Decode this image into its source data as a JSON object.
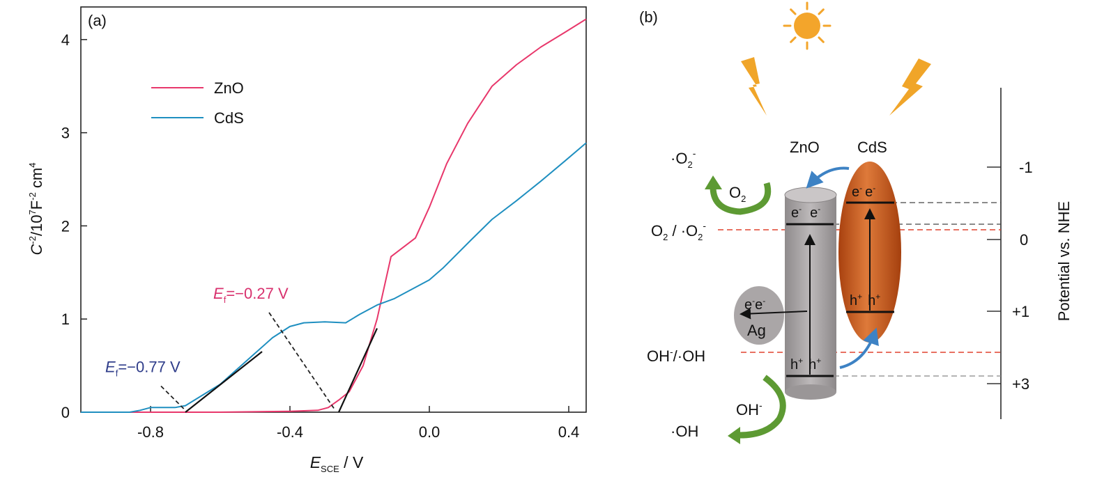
{
  "panel_a": {
    "tag": "(a)"
  },
  "panel_b": {
    "tag": "(b)"
  },
  "chart_data": {
    "type": "line",
    "xlabel": {
      "main": "E",
      "sub": "SCE",
      "rest": " / V"
    },
    "ylabel": {
      "c": "C",
      "s1": "-2",
      "mid": "/10",
      "s2": "7",
      "f": "F",
      "s3": "-2",
      "cm": " cm",
      "s4": "4"
    },
    "xlim": [
      -1.0,
      0.45
    ],
    "ylim": [
      0,
      4.35
    ],
    "xticks": [
      -0.8,
      -0.4,
      0.0,
      0.4
    ],
    "xtick_labels": [
      "-0.8",
      "-0.4",
      "0.0",
      "0.4"
    ],
    "yticks": [
      0,
      1,
      2,
      3,
      4
    ],
    "ytick_labels": [
      "0",
      "1",
      "2",
      "3",
      "4"
    ],
    "legend_position": "upper-left",
    "grid": false,
    "series": [
      {
        "name": "ZnO",
        "color": "#e8376b",
        "x": [
          -1.0,
          -0.6,
          -0.4,
          -0.32,
          -0.29,
          -0.26,
          -0.23,
          -0.19,
          -0.15,
          -0.11,
          -0.04,
          0.0,
          0.05,
          0.11,
          0.18,
          0.25,
          0.32,
          0.39,
          0.45
        ],
        "y": [
          0.0,
          0.0,
          0.01,
          0.02,
          0.05,
          0.13,
          0.22,
          0.5,
          1.0,
          1.67,
          1.87,
          2.2,
          2.67,
          3.1,
          3.5,
          3.73,
          3.92,
          4.08,
          4.22
        ]
      },
      {
        "name": "CdS",
        "color": "#1f8fc0",
        "x": [
          -1.0,
          -0.86,
          -0.83,
          -0.8,
          -0.73,
          -0.7,
          -0.6,
          -0.45,
          -0.4,
          -0.36,
          -0.3,
          -0.24,
          -0.2,
          -0.15,
          -0.1,
          -0.05,
          0.0,
          0.04,
          0.12,
          0.18,
          0.25,
          0.32,
          0.39,
          0.45
        ],
        "y": [
          0.0,
          0.0,
          0.02,
          0.05,
          0.05,
          0.07,
          0.3,
          0.8,
          0.92,
          0.96,
          0.97,
          0.96,
          1.05,
          1.15,
          1.22,
          1.32,
          1.42,
          1.55,
          1.85,
          2.07,
          2.27,
          2.48,
          2.7,
          2.89
        ]
      }
    ],
    "tangents": [
      {
        "x": [
          -0.7,
          -0.48
        ],
        "y": [
          0.0,
          0.65
        ],
        "color": "#111111"
      },
      {
        "x": [
          -0.26,
          -0.15
        ],
        "y": [
          0.0,
          0.9
        ],
        "color": "#111111"
      }
    ],
    "annotations": [
      {
        "E": "E",
        "sub": "f",
        "rest": "=−0.77 V",
        "color": "#2f3d8a",
        "from": [
          -0.77,
          0.28
        ],
        "to": [
          -0.7,
          0.02
        ]
      },
      {
        "E": "E",
        "sub": "f",
        "rest": "=−0.27 V",
        "color": "#d8306d",
        "from": [
          -0.46,
          1.07
        ],
        "to": [
          -0.27,
          0.02
        ]
      }
    ]
  },
  "diagram": {
    "zno_label": "ZnO",
    "cds_label": "CdS",
    "o2_radical": {
      "dot": "·",
      "o": "O",
      "sub": "2",
      "sup": "-"
    },
    "o2_ring": {
      "o": "O",
      "sub": "2"
    },
    "o2_couple": {
      "o1": "O",
      "sub1": "2",
      "slash": " / ",
      "dot": "·",
      "o2": "O",
      "sub2": "2",
      "sup": "-"
    },
    "oh_couple": {
      "oh": "OH",
      "sup": "-",
      "rest": "/·OH"
    },
    "oh_minus": {
      "oh": "OH",
      "sup": "-"
    },
    "oh_radical": "·OH",
    "ag": {
      "label": "Ag",
      "e": "e",
      "sup": "-"
    },
    "electron": {
      "e": "e",
      "sup": "-"
    },
    "hole": {
      "h": "h",
      "sup": "+"
    },
    "axis_label": "Potential vs. NHE",
    "axis_ticks": [
      "-1",
      "0",
      "+1",
      "+3"
    ],
    "colors": {
      "sun": "#f3a52b",
      "bolt": "#f0a529",
      "cds": "#c8581a",
      "zno": "#a9a5a6",
      "arrow": "#3d82c4",
      "green": "#5d9a33",
      "red_dash": "#e0422f"
    }
  }
}
